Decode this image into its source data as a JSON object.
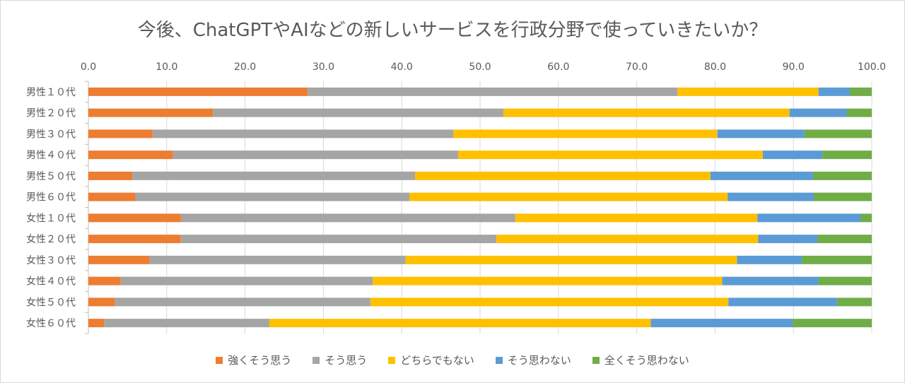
{
  "chart_data": {
    "type": "bar",
    "orientation": "horizontal",
    "stacked": true,
    "title": "今後、ChatGPTやAIなどの新しいサービスを行政分野で使っていきたいか？",
    "xlim": [
      0,
      100
    ],
    "xticks": [
      "0.0",
      "10.0",
      "20.0",
      "30.0",
      "40.0",
      "50.0",
      "60.0",
      "70.0",
      "80.0",
      "90.0",
      "100.0"
    ],
    "grid": true,
    "legend_position": "bottom",
    "categories": [
      "男性１０代",
      "男性２０代",
      "男性３０代",
      "男性４０代",
      "男性５０代",
      "男性６０代",
      "女性１０代",
      "女性２０代",
      "女性３０代",
      "女性４０代",
      "女性５０代",
      "女性６０代"
    ],
    "series": [
      {
        "name": "強くそう思う",
        "color": "#ED7D31",
        "values": [
          28.0,
          15.9,
          8.2,
          10.8,
          5.6,
          6.0,
          11.8,
          11.8,
          7.8,
          4.1,
          3.4,
          2.0
        ]
      },
      {
        "name": "そう思う",
        "color": "#A5A5A5",
        "values": [
          47.2,
          37.1,
          38.4,
          36.4,
          36.1,
          35.0,
          42.7,
          40.3,
          32.7,
          32.2,
          32.6,
          21.1
        ]
      },
      {
        "name": "どちらでもない",
        "color": "#FFC000",
        "values": [
          18.0,
          36.5,
          33.7,
          38.9,
          37.7,
          40.6,
          30.9,
          33.4,
          42.3,
          44.6,
          45.7,
          48.7
        ]
      },
      {
        "name": "そう思わない",
        "color": "#5B9BD5",
        "values": [
          4.0,
          7.3,
          11.1,
          7.6,
          13.1,
          11.0,
          13.2,
          7.6,
          8.3,
          12.3,
          13.9,
          18.1
        ]
      },
      {
        "name": "全くそう思わない",
        "color": "#70AD47",
        "values": [
          2.8,
          3.2,
          8.6,
          6.3,
          7.5,
          7.4,
          1.4,
          6.9,
          8.9,
          6.8,
          4.4,
          10.1
        ]
      }
    ]
  }
}
